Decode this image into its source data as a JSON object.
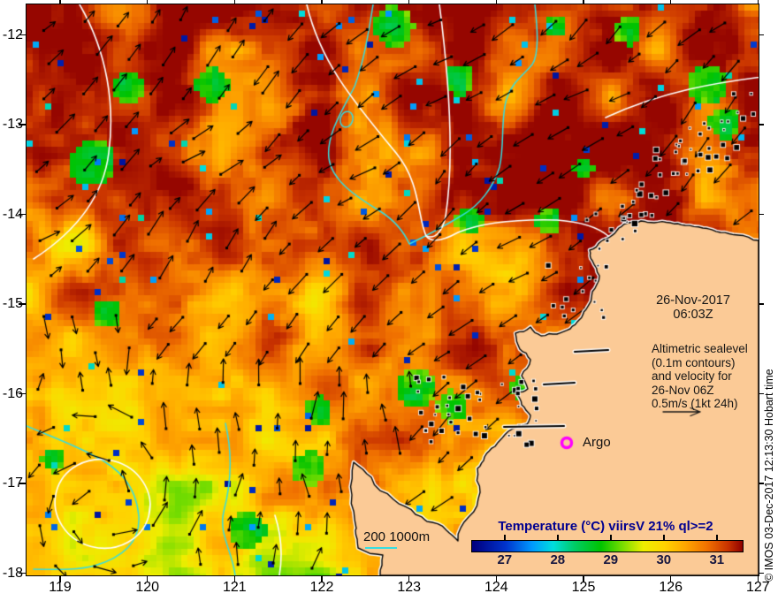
{
  "meta": {
    "copyright": "© IMOS 03-Dec-2017 12:13:30 Hobart time"
  },
  "axes": {
    "x_tick_labels": [
      "119",
      "120",
      "121",
      "122",
      "123",
      "124",
      "125",
      "126",
      "127"
    ],
    "y_tick_labels": [
      "-12",
      "-13",
      "-14",
      "-15",
      "-16",
      "-17",
      "-18"
    ]
  },
  "annotations": {
    "datetime_line1": "26-Nov-2017",
    "datetime_line2": "06:03Z",
    "altimetric_lines": [
      "Altimetric sealevel",
      "(0.1m contours)",
      "and velocity for",
      "26-Nov 06Z",
      "0.5m/s (1kt 24h)"
    ],
    "argo_label": "Argo",
    "depth_legend_label": "200 1000m"
  },
  "colorbar": {
    "title": "Temperature (°C) viirsV 21% ql>=2",
    "tick_labels": [
      "27",
      "28",
      "29",
      "30",
      "31"
    ],
    "tick_values": [
      27,
      28,
      29,
      30,
      31
    ],
    "value_range": [
      26.37,
      31.47
    ]
  },
  "colors": {
    "land": "#FBCA96",
    "sealevel_contour_white": "#FFFFFF",
    "bathy_cyan": "#35DDE0",
    "arrow_black": "#000000",
    "argo_magenta": "#FF00FF",
    "colorbar_title_navy": "#000090",
    "colorbar_number_navy": "#16163F",
    "palette": [
      [
        26.4,
        "#000080"
      ],
      [
        27.0,
        "#0033CC"
      ],
      [
        27.5,
        "#0099FF"
      ],
      [
        27.9,
        "#00DDDD"
      ],
      [
        28.3,
        "#00CC66"
      ],
      [
        28.8,
        "#00C300"
      ],
      [
        29.2,
        "#77DD00"
      ],
      [
        29.6,
        "#EEEE00"
      ],
      [
        30.0,
        "#FFD300"
      ],
      [
        30.4,
        "#FFA500"
      ],
      [
        30.8,
        "#F07000"
      ],
      [
        31.2,
        "#C83200"
      ],
      [
        31.6,
        "#8F0000"
      ]
    ]
  },
  "chart_data": {
    "type": "heatmap",
    "x_ticks": [
      119,
      120,
      121,
      122,
      123,
      124,
      125,
      126,
      127
    ],
    "y_ticks": [
      -12,
      -13,
      -14,
      -15,
      -16,
      -17,
      -18
    ],
    "xlim": [
      118.62,
      127.01
    ],
    "ylim": [
      -18.04,
      -11.66
    ],
    "grid": false,
    "colorbar": {
      "label": "Temperature (°C) viirsV 21% ql>=2",
      "ticks": [
        27,
        28,
        29,
        30,
        31
      ],
      "range": [
        26.37,
        31.47
      ],
      "orientation": "horizontal"
    },
    "timestamp_shown": "26-Nov-2017 06:03Z",
    "overlays": [
      "Altimetric sealevel (0.1m contours) and velocity for 26-Nov 06Z, scale arrow 0.5m/s (1kt 24h)",
      "Bathymetry contours 200 and 1000m (cyan)",
      "Surface velocity arrows (black)",
      "Argo float marker (magenta circle)"
    ],
    "argo_float": {
      "lon_approx": 124.8,
      "lat_approx": -16.5
    },
    "field_summary": "SST mostly 30.5-31.5°C (dark red/orange) in north and east, 29.5-30.5°C (yellow/orange) in southwest, scattered 28-29°C (green) patches and rare <28°C (blue/cyan) pixels; land (NW Australia Kimberley coast) occupies lower right"
  }
}
